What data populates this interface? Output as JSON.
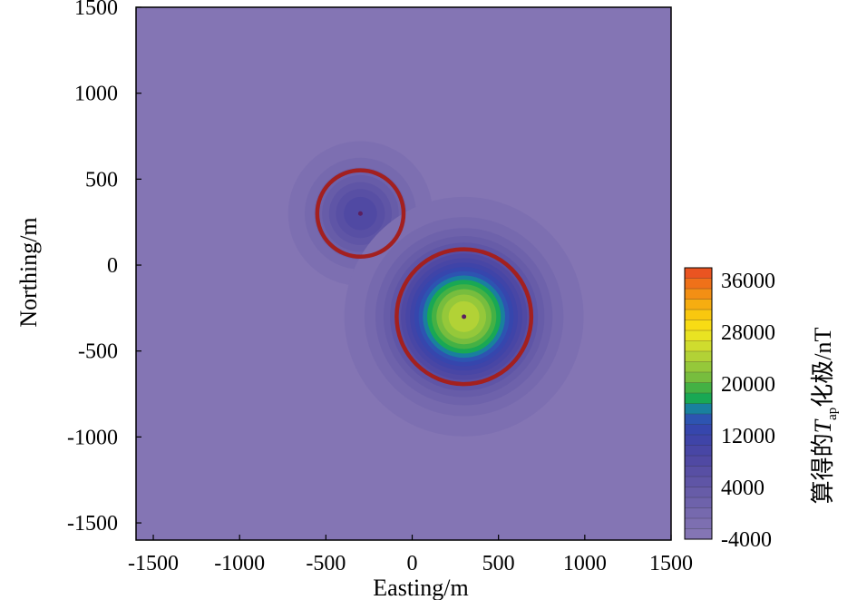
{
  "chart_data": {
    "type": "heatmap",
    "title": "",
    "xlabel": "Easting/m",
    "ylabel": "Northing/m",
    "xlim": [
      -1600,
      1500
    ],
    "ylim": [
      -1600,
      1500
    ],
    "x_ticks": [
      -1500,
      -1000,
      -500,
      0,
      500,
      1000,
      1500
    ],
    "y_ticks": [
      1500,
      1000,
      500,
      0,
      -500,
      -1000,
      -1500
    ],
    "colorbar": {
      "label_main": "算得的",
      "label_symbol": "T",
      "label_subscript": "ap",
      "label_suffix": "化极/nT",
      "min": -4000,
      "max": 38000,
      "step": 2000,
      "ticks": [
        36000,
        28000,
        20000,
        12000,
        4000,
        -4000
      ],
      "colors": [
        "#8475b4",
        "#7d6fb1",
        "#7669ae",
        "#6e62ab",
        "#675ca8",
        "#5f55a6",
        "#584fa4",
        "#5049a3",
        "#4846a5",
        "#3f44a8",
        "#3646ad",
        "#2d54b1",
        "#19809e",
        "#19a854",
        "#44b144",
        "#77bd3e",
        "#95c83a",
        "#b2d236",
        "#cfdc2e",
        "#e9e322",
        "#f8dc14",
        "#f9c80f",
        "#f6ad10",
        "#f38f14",
        "#ef7119",
        "#ea5421"
      ]
    },
    "sources": [
      {
        "x": -300,
        "y": 300,
        "peak": 12000,
        "spread": 180,
        "outline_radius": 250
      },
      {
        "x": 300,
        "y": -300,
        "peak": 32000,
        "spread": 260,
        "outline_radius": 390
      }
    ],
    "background_value": -3000
  }
}
